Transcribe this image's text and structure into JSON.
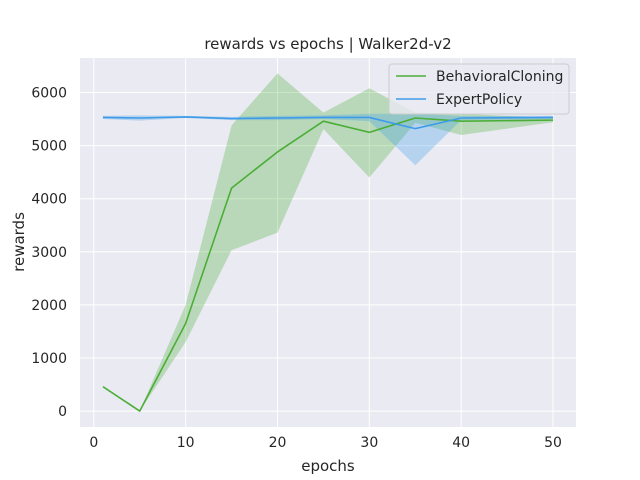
{
  "chart_data": {
    "type": "line",
    "title": "rewards vs epochs | Walker2d-v2",
    "xlabel": "epochs",
    "ylabel": "rewards",
    "xlim": [
      -1.5,
      52.5
    ],
    "ylim": [
      -300,
      6650
    ],
    "xticks": [
      0,
      10,
      20,
      30,
      40,
      50
    ],
    "yticks": [
      0,
      1000,
      2000,
      3000,
      4000,
      5000,
      6000
    ],
    "grid": true,
    "legend_position": "top-right",
    "series": [
      {
        "name": "BehavioralCloning",
        "color": "#4aae36",
        "x": [
          1,
          5,
          10,
          15,
          20,
          25,
          30,
          35,
          40,
          50
        ],
        "y": [
          460,
          0,
          1650,
          4200,
          4880,
          5460,
          5250,
          5520,
          5460,
          5480
        ],
        "band_upper": [
          460,
          0,
          2000,
          5380,
          6360,
          5620,
          6080,
          5620,
          5600,
          5520
        ],
        "band_lower": [
          460,
          0,
          1300,
          3030,
          3360,
          5310,
          4400,
          5430,
          5200,
          5440
        ]
      },
      {
        "name": "ExpertPolicy",
        "color": "#3d9be9",
        "x": [
          1,
          5,
          10,
          15,
          20,
          25,
          30,
          35,
          40,
          50
        ],
        "y": [
          5530,
          5520,
          5540,
          5510,
          5520,
          5530,
          5530,
          5320,
          5520,
          5530
        ],
        "band_upper": [
          5560,
          5570,
          5560,
          5540,
          5560,
          5570,
          5600,
          5600,
          5560,
          5560
        ],
        "band_lower": [
          5500,
          5470,
          5520,
          5480,
          5480,
          5500,
          5460,
          4630,
          5480,
          5500
        ]
      }
    ]
  }
}
